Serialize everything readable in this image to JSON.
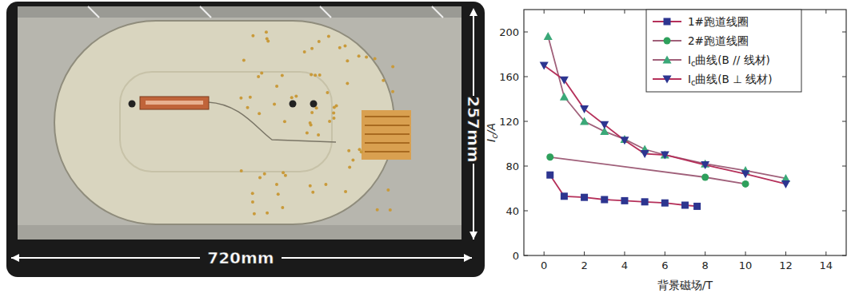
{
  "photo": {
    "width_label": "720mm",
    "height_label": "257mm"
  },
  "chart_data": {
    "type": "line",
    "x_label": "背景磁场/T",
    "y_label": "Ic/A",
    "xlim": [
      -1,
      15
    ],
    "xticks": [
      0,
      2,
      4,
      6,
      8,
      10,
      12,
      14
    ],
    "ylim": [
      0,
      220
    ],
    "yticks": [
      0,
      40,
      80,
      120,
      160,
      200
    ],
    "grid": false,
    "legend": "upper right",
    "series": [
      {
        "name": "1#跑道线圈",
        "color": "#b5305a",
        "marker": "square",
        "x": [
          0.3,
          1,
          2,
          3,
          4,
          5,
          6,
          7,
          7.6
        ],
        "values": [
          72,
          53,
          52,
          50,
          49,
          48,
          47,
          45,
          44
        ]
      },
      {
        "name": "2#跑道线圈",
        "color": "#a0607a",
        "marker": "circle",
        "x": [
          0.3,
          8,
          10
        ],
        "values": [
          88,
          70,
          64
        ]
      },
      {
        "name": "Ic曲线(B // 线材)",
        "color": "#a0607a",
        "marker": "triangle-up",
        "x": [
          0.2,
          1,
          2,
          3,
          4,
          5,
          6,
          8,
          10,
          12
        ],
        "values": [
          196,
          142,
          120,
          111,
          104,
          95,
          90,
          82,
          76,
          69
        ]
      },
      {
        "name": "Ic曲线(B ⊥ 线材)",
        "color": "#b5305a",
        "marker": "triangle-down",
        "x": [
          0,
          1,
          2,
          3,
          4,
          5,
          6,
          8,
          10,
          12
        ],
        "values": [
          170,
          157,
          131,
          117,
          103,
          91,
          90,
          81,
          73,
          64
        ]
      }
    ]
  }
}
